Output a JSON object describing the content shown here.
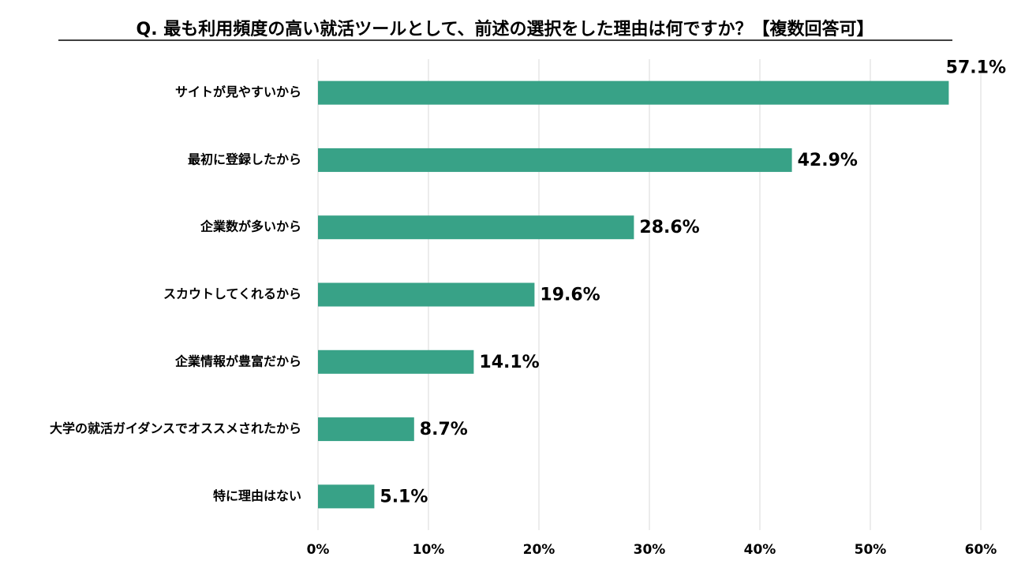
{
  "chart_data": {
    "type": "hbar",
    "title": "Q. 最も利用頻度の高い就活ツールとして、前述の選択をした理由は何ですか？【複数回答可】",
    "categories": [
      "サイトが見やすいから",
      "最初に登録したから",
      "企業数が多いから",
      "スカウトしてくれるから",
      "企業情報が豊富だから",
      "大学の就活ガイダンスでオススメされたから",
      "特に理由はない"
    ],
    "values": [
      57.1,
      42.9,
      28.6,
      19.6,
      14.1,
      8.7,
      5.1
    ],
    "value_labels": [
      "57.1%",
      "42.9%",
      "28.6%",
      "19.6%",
      "14.1%",
      "8.7%",
      "5.1%"
    ],
    "color": "#38a287",
    "xlim": [
      0,
      60
    ],
    "xticks": [
      {
        "value": 0,
        "label": "0%"
      },
      {
        "value": 10,
        "label": "10%"
      },
      {
        "value": 20,
        "label": "20%"
      },
      {
        "value": 30,
        "label": "30%"
      },
      {
        "value": 40,
        "label": "40%"
      },
      {
        "value": 50,
        "label": "50%"
      },
      {
        "value": 60,
        "label": "60%"
      }
    ],
    "grid": true
  }
}
